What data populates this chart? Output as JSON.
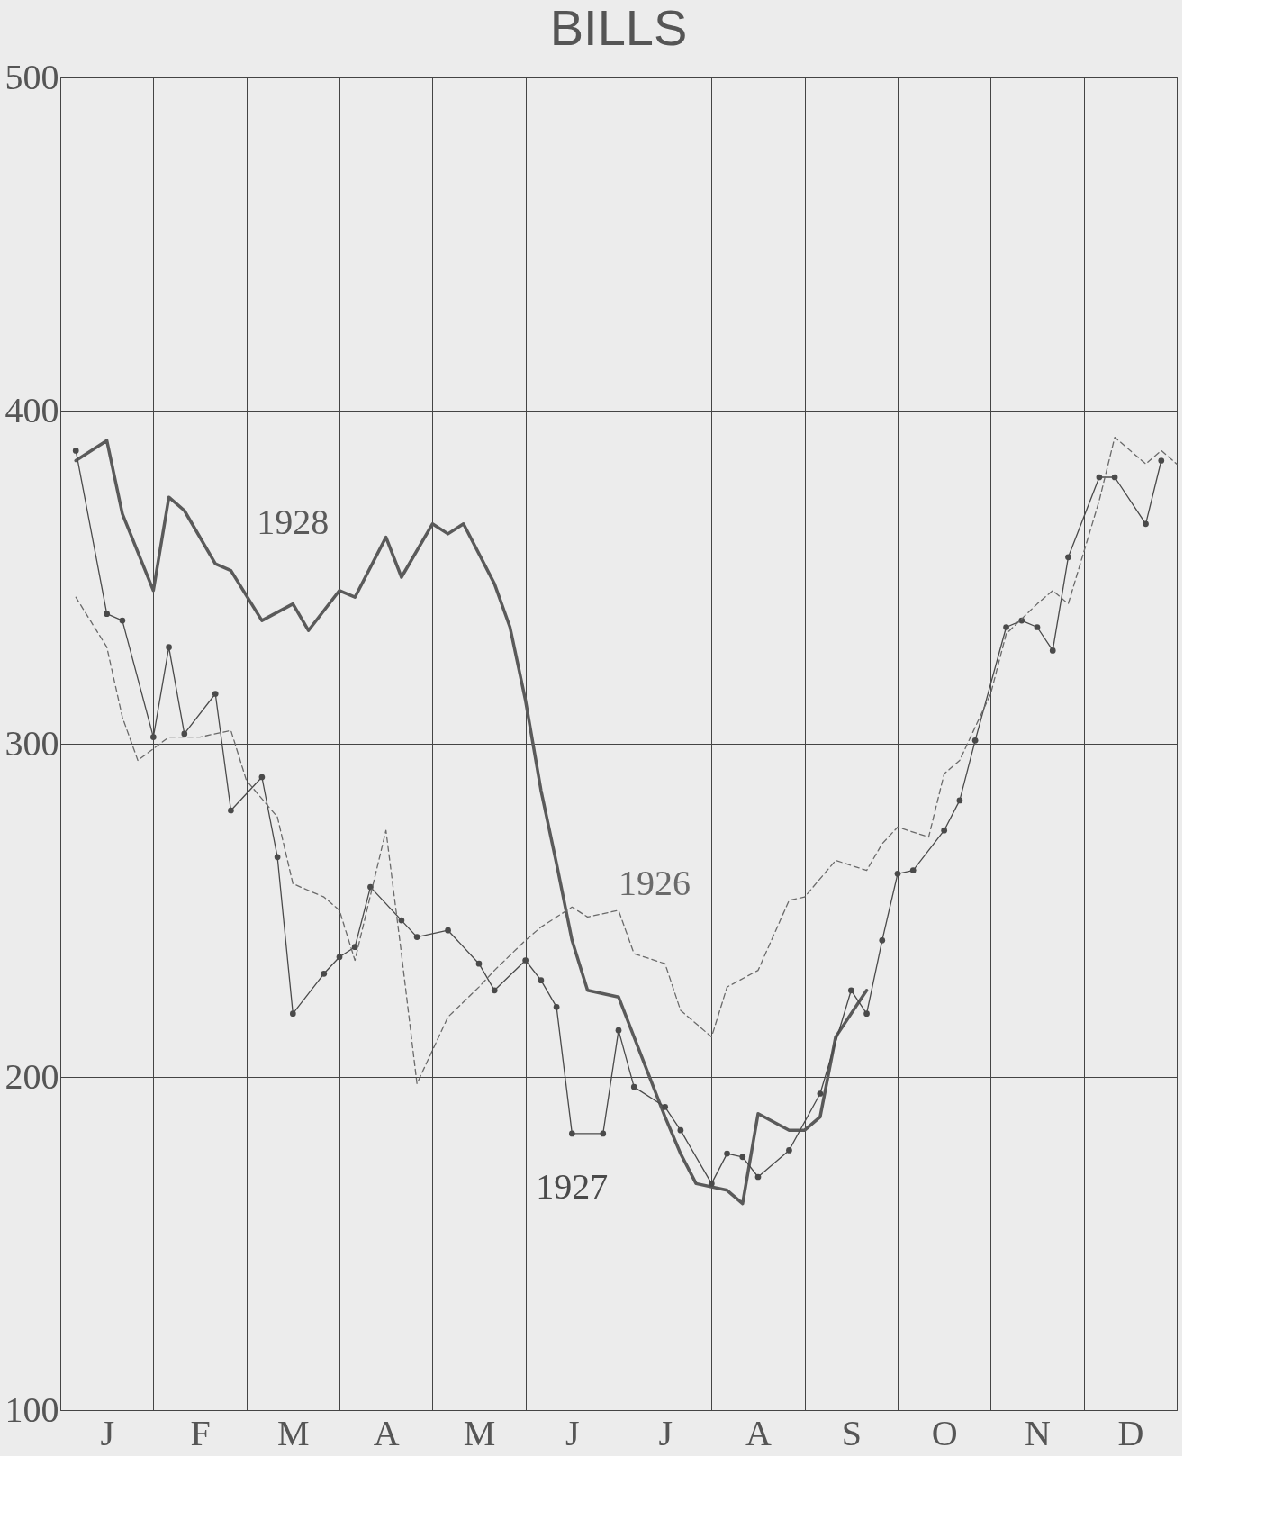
{
  "chart_data": {
    "type": "line",
    "title": "BILLS",
    "categories": [
      null,
      null,
      null,
      "J",
      null,
      null,
      null,
      null,
      null,
      "F",
      null,
      null,
      null,
      null,
      null,
      "M",
      null,
      null,
      null,
      null,
      null,
      "A",
      null,
      null,
      null,
      null,
      null,
      "M",
      null,
      null,
      null,
      null,
      null,
      "J",
      null,
      null,
      null,
      null,
      null,
      "J",
      null,
      null,
      null,
      null,
      null,
      "A",
      null,
      null,
      null,
      null,
      null,
      "S",
      null,
      null,
      null,
      null,
      null,
      "O",
      null,
      null,
      null,
      null,
      null,
      "N",
      null,
      null,
      null,
      null,
      null,
      "D",
      null,
      null,
      null
    ],
    "ylim": [
      100,
      500
    ],
    "yticks": [
      100,
      200,
      300,
      400,
      500
    ],
    "grid": true,
    "series": [
      {
        "name": "1928",
        "color": "#5a5a5a",
        "line_style": "solid",
        "marker": "none",
        "values": [
          null,
          385,
          null,
          391,
          369,
          null,
          346,
          374,
          370,
          null,
          354,
          352,
          null,
          337,
          null,
          342,
          334,
          null,
          346,
          344,
          null,
          362,
          350,
          null,
          366,
          363,
          366,
          null,
          348,
          335,
          313,
          286,
          264,
          241,
          226,
          null,
          224,
          212,
          null,
          188,
          177,
          168,
          null,
          166,
          162,
          189,
          null,
          184,
          184,
          188,
          212,
          null,
          226,
          null,
          null,
          null,
          null,
          null,
          null,
          null,
          null,
          null,
          null,
          null,
          null,
          null,
          null,
          null,
          null,
          null,
          null,
          null,
          null
        ]
      },
      {
        "name": "1927",
        "color": "#4a4a4a",
        "line_style": "solid",
        "marker": "circle",
        "values": [
          null,
          388,
          null,
          339,
          337,
          null,
          302,
          329,
          303,
          null,
          315,
          280,
          null,
          290,
          266,
          219,
          null,
          231,
          236,
          239,
          257,
          null,
          247,
          242,
          null,
          244,
          null,
          234,
          226,
          null,
          235,
          229,
          221,
          183,
          null,
          183,
          214,
          197,
          null,
          191,
          184,
          null,
          168,
          177,
          176,
          170,
          null,
          178,
          null,
          195,
          null,
          226,
          219,
          241,
          261,
          262,
          null,
          274,
          283,
          301,
          null,
          335,
          337,
          335,
          328,
          356,
          null,
          380,
          380,
          null,
          366,
          385,
          null
        ]
      },
      {
        "name": "1926",
        "color": "#6a6a6a",
        "line_style": "dashed",
        "marker": "none",
        "values": [
          null,
          344,
          null,
          329,
          308,
          295,
          null,
          302,
          null,
          302,
          303,
          304,
          289,
          null,
          278,
          258,
          null,
          254,
          250,
          235,
          null,
          274,
          237,
          198,
          null,
          218,
          null,
          227,
          232,
          null,
          241,
          245,
          null,
          251,
          248,
          null,
          250,
          237,
          null,
          234,
          220,
          null,
          212,
          227,
          null,
          232,
          null,
          253,
          254,
          null,
          265,
          null,
          262,
          270,
          275,
          null,
          272,
          291,
          295,
          null,
          315,
          333,
          null,
          342,
          346,
          342,
          null,
          373,
          392,
          null,
          384,
          388,
          384
        ]
      }
    ]
  }
}
